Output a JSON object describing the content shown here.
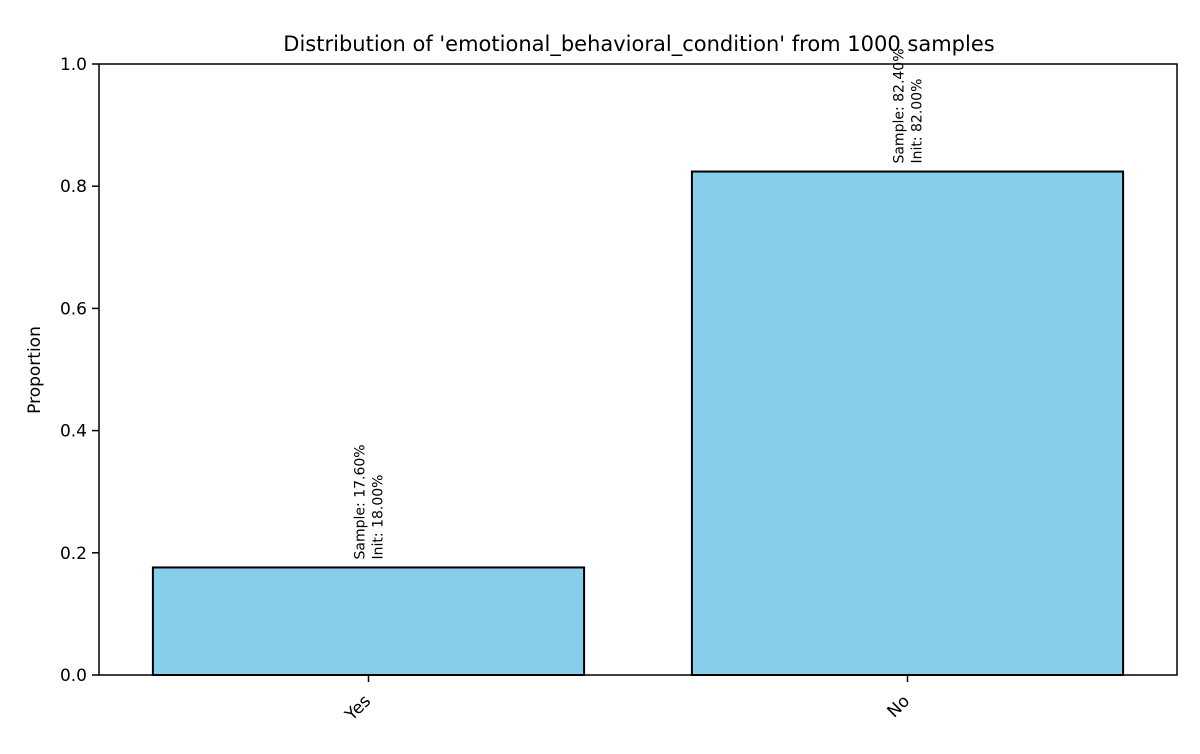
{
  "chart_data": {
    "type": "bar",
    "title": "Distribution of 'emotional_behavioral_condition' from 1000 samples",
    "xlabel": "",
    "ylabel": "Proportion",
    "categories": [
      "Yes",
      "No"
    ],
    "values": [
      0.176,
      0.824
    ],
    "bar_labels": [
      [
        "Sample: 17.60%",
        "Init: 18.00%"
      ],
      [
        "Sample: 82.40%",
        "Init: 82.00%"
      ]
    ],
    "ylim": [
      0,
      1.0
    ],
    "yticks": [
      "0.0",
      "0.2",
      "0.4",
      "0.6",
      "0.8",
      "1.0"
    ],
    "grid": false,
    "legend": "none",
    "colors": {
      "bar_fill": "#87CEEB",
      "bar_edge": "#000000"
    }
  }
}
